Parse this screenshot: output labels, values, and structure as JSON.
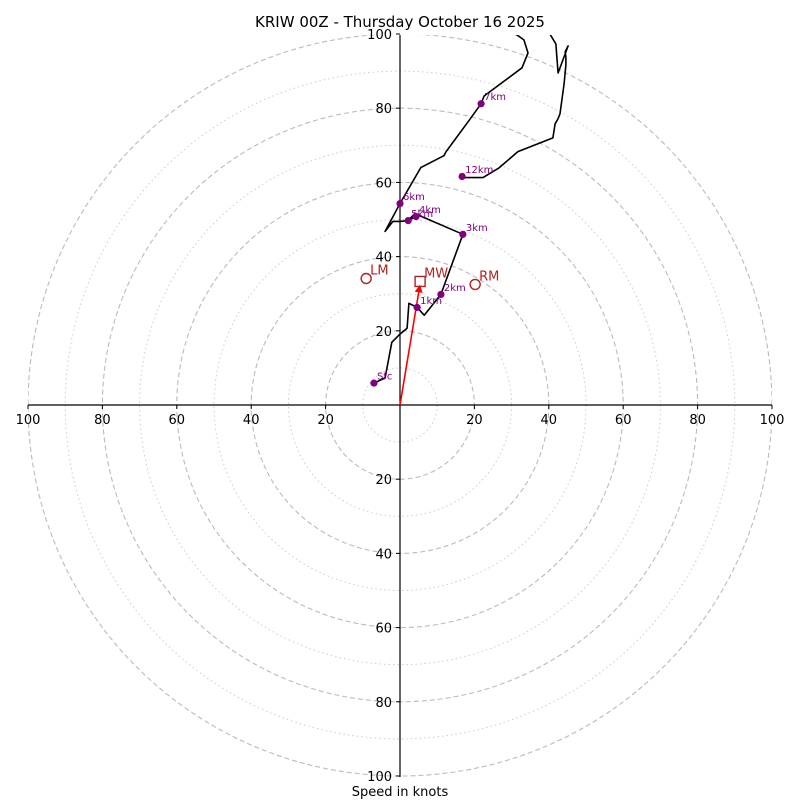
{
  "chart_data": {
    "type": "line",
    "subtype": "hodograph",
    "title": "KRIW 00Z - Thursday October 16 2025",
    "xlabel": "Speed in knots",
    "ylabel": "",
    "xlim": [
      -100,
      100
    ],
    "ylim": [
      -100,
      100
    ],
    "rings_major": [
      20,
      40,
      60,
      80,
      100
    ],
    "rings_minor": [
      10,
      30,
      50,
      70,
      90
    ],
    "x_ticks": [
      {
        "value": -100,
        "label": "100"
      },
      {
        "value": -80,
        "label": "80"
      },
      {
        "value": -60,
        "label": "60"
      },
      {
        "value": -40,
        "label": "40"
      },
      {
        "value": -20,
        "label": "20"
      },
      {
        "value": 20,
        "label": "20"
      },
      {
        "value": 40,
        "label": "40"
      },
      {
        "value": 60,
        "label": "60"
      },
      {
        "value": 80,
        "label": "80"
      },
      {
        "value": 100,
        "label": "100"
      }
    ],
    "y_ticks": [
      {
        "value": 100,
        "label": "100"
      },
      {
        "value": 80,
        "label": "80"
      },
      {
        "value": 60,
        "label": "60"
      },
      {
        "value": 40,
        "label": "40"
      },
      {
        "value": 20,
        "label": "20"
      },
      {
        "value": -20,
        "label": "20"
      },
      {
        "value": -40,
        "label": "40"
      },
      {
        "value": -60,
        "label": "60"
      },
      {
        "value": -80,
        "label": "80"
      },
      {
        "value": -100,
        "label": "100"
      }
    ],
    "grid": true,
    "colors": {
      "trace": "#000000",
      "height_marker": "#800080",
      "motion": "#b22222",
      "mean_wind_vector": "#ff0000",
      "ring_grid": "#bbbbbb"
    },
    "wind_trace": {
      "name": "Hodograph",
      "u": [
        -7.0,
        -4.0,
        -2.2,
        0.0,
        1.9,
        2.4,
        4.6,
        6.5,
        11.0,
        16.9,
        4.0,
        2.7,
        4.3,
        2.2,
        0.0,
        -1.9,
        -4.0,
        0.0,
        5.6,
        11.8,
        12.4,
        18.5,
        21.8,
        22.6,
        32.8,
        34.4,
        33.3,
        31.5,
        30.9,
        27.7,
        26.0,
        25.0,
        23.0,
        24.6,
        25.3,
        25.8,
        42.7,
        42.3,
        42.7,
        40.5,
        39.7,
        40.3,
        41.1,
        42.7,
        41.8,
        44.6,
        41.4,
        41.7,
        40.5,
        40.3,
        43.5,
        42.2,
        46.4,
        42.5,
        42.2,
        40.9,
        37.9,
        36.9,
        39.1,
        41.9,
        42.7,
        38.1,
        41.4,
        42.5,
        43.0,
        44.6,
        44.1,
        40.9,
        42.5,
        41.9,
        44.1,
        41.1,
        42.7,
        44.6,
        44.9,
        44.4,
        42.7,
        45.2,
        45.2
      ],
      "v": [
        5.9,
        7.3,
        16.9,
        19.1,
        20.7,
        27.4,
        26.3,
        24.2,
        29.8,
        46.0,
        51.6,
        50.3,
        50.8,
        49.7,
        49.5,
        49.5,
        46.8,
        54.3,
        64.0,
        67.2,
        68.3,
        76.6,
        81.2,
        83.3,
        90.9,
        94.9,
        98.4,
        99.7,
        100.0,
        100.0,
        100.0,
        100.0,
        100.0,
        100.0,
        100.0,
        100.0,
        100.0,
        100.0,
        100.0,
        100.0,
        100.0,
        100.0,
        100.0,
        100.0,
        100.0,
        100.0,
        100.0,
        100.0,
        100.0,
        100.0,
        100.0,
        100.0,
        100.0,
        100.0,
        100.0,
        100.0,
        100.0,
        100.0,
        100.0,
        100.0,
        100.0,
        100.0,
        100.0,
        100.0,
        100.0,
        100.0,
        100.0,
        100.0,
        100.0,
        100.0,
        100.0,
        100.0,
        100.0,
        100.0,
        100.0,
        100.0,
        100.0,
        100.0,
        100.0
      ]
    },
    "upper_trace": {
      "name": "Hodograph upper branch",
      "u": [
        16.9,
        16.7,
        22.3,
        26.6,
        31.7,
        41.1,
        41.7,
        42.5,
        43.0,
        44.1,
        44.6,
        44.6,
        44.4,
        45.2,
        42.5,
        42.2,
        41.9,
        40.3
      ],
      "v": [
        61.6,
        61.3,
        61.3,
        63.9,
        68.3,
        72.0,
        75.8,
        77.2,
        78.5,
        86.6,
        91.7,
        93.8,
        95.2,
        96.8,
        89.5,
        93.3,
        97.3,
        100.0
      ]
    },
    "height_markers": [
      {
        "label": "Sfc",
        "u": -7.0,
        "v": 5.9
      },
      {
        "label": "1km",
        "u": 4.6,
        "v": 26.3
      },
      {
        "label": "2km",
        "u": 11.0,
        "v": 29.8
      },
      {
        "label": "3km",
        "u": 16.9,
        "v": 46.0
      },
      {
        "label": "4km",
        "u": 4.3,
        "v": 50.8
      },
      {
        "label": "5km",
        "u": 2.2,
        "v": 49.7
      },
      {
        "label": "6km",
        "u": 0.0,
        "v": 54.3
      },
      {
        "label": "7km",
        "u": 21.8,
        "v": 81.2
      },
      {
        "label": "12km",
        "u": 16.7,
        "v": 61.6
      }
    ],
    "storm_motion": [
      {
        "label": "LM",
        "u": -9.1,
        "v": 34.1,
        "marker": "circle"
      },
      {
        "label": "RM",
        "u": 20.2,
        "v": 32.5,
        "marker": "circle"
      },
      {
        "label": "MW",
        "u": 5.4,
        "v": 33.3,
        "marker": "square"
      }
    ],
    "mean_wind_vector": {
      "u": 5.4,
      "v": 33.3
    }
  }
}
